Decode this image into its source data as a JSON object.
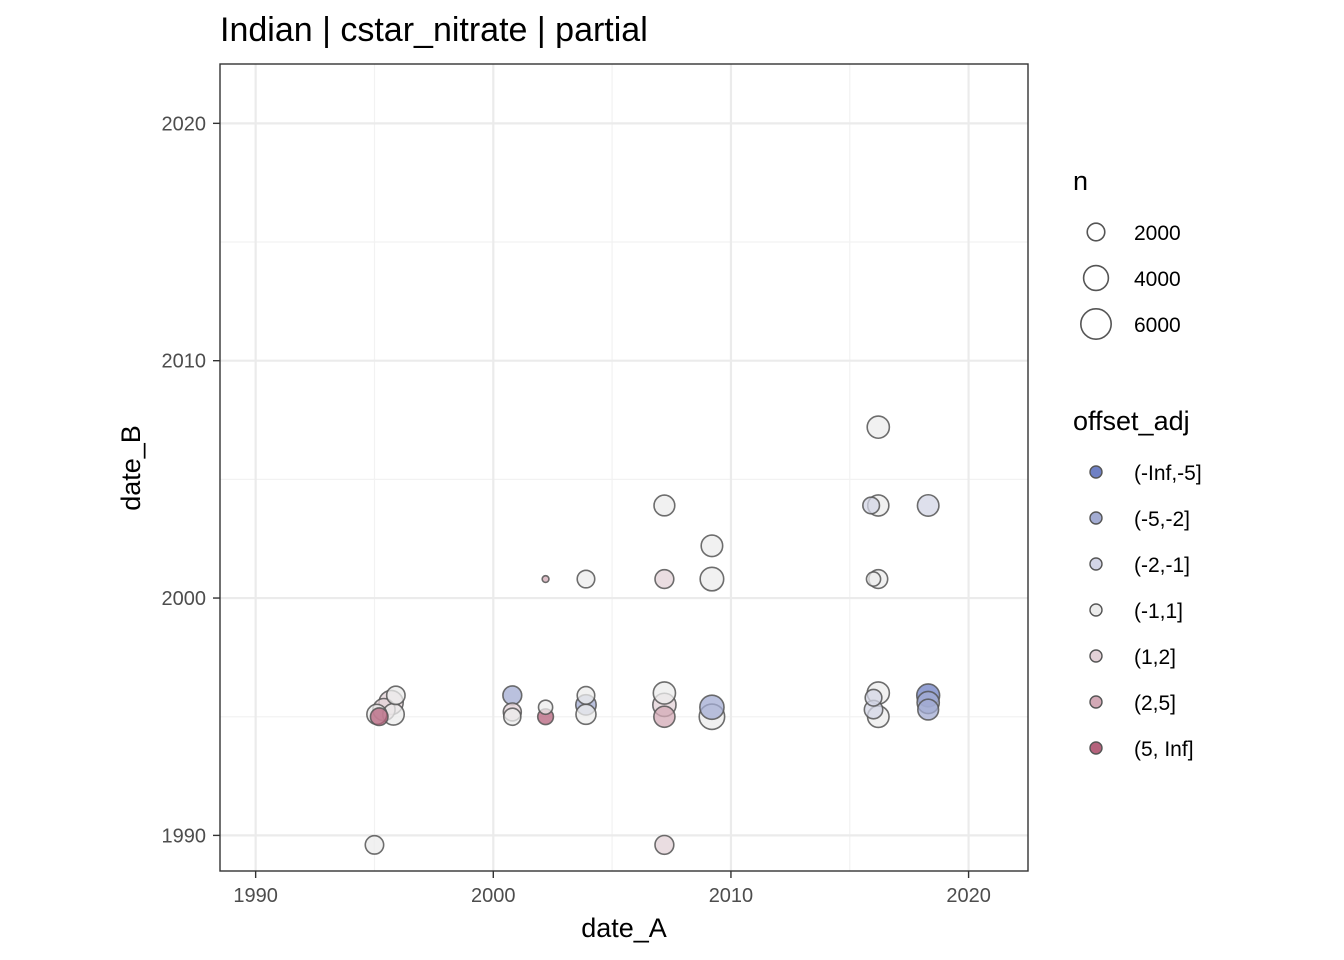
{
  "chart_data": {
    "type": "scatter",
    "title": "Indian | cstar_nitrate | partial",
    "xlabel": "date_A",
    "ylabel": "date_B",
    "xlim": [
      1988.5,
      2022.5
    ],
    "ylim": [
      1988.5,
      2022.5
    ],
    "x_ticks": [
      "1990",
      "2000",
      "2010",
      "2020"
    ],
    "y_ticks": [
      "1990",
      "2000",
      "2010",
      "2020"
    ],
    "grid": true,
    "legend_position": "right",
    "size_legend": {
      "title": "n",
      "entries": [
        {
          "label": "2000",
          "value": 2000
        },
        {
          "label": "4000",
          "value": 4000
        },
        {
          "label": "6000",
          "value": 6000
        }
      ]
    },
    "color_legend": {
      "title": "offset_adj",
      "entries": [
        {
          "label": "(-Inf,-5]",
          "color": "#6f80c4"
        },
        {
          "label": "(-5,-2]",
          "color": "#a3acd3"
        },
        {
          "label": "(-2,-1]",
          "color": "#d3d5e6"
        },
        {
          "label": "(-1,1]",
          "color": "#ececec"
        },
        {
          "label": "(1,2]",
          "color": "#e3d1d7"
        },
        {
          "label": "(2,5]",
          "color": "#d3a9b6"
        },
        {
          "label": "(5, Inf]",
          "color": "#b5627c"
        }
      ]
    },
    "points": [
      {
        "x": 1995.0,
        "y": 1989.6,
        "n": 2200,
        "group": "(-1,1]"
      },
      {
        "x": 1995.1,
        "y": 1995.1,
        "n": 2600,
        "group": "(-1,1]"
      },
      {
        "x": 1995.2,
        "y": 1995.0,
        "n": 2000,
        "group": "(5, Inf]"
      },
      {
        "x": 1995.4,
        "y": 1995.3,
        "n": 3200,
        "group": "(1,2]"
      },
      {
        "x": 1995.7,
        "y": 1995.6,
        "n": 3800,
        "group": "(1,2]"
      },
      {
        "x": 1995.8,
        "y": 1995.1,
        "n": 3000,
        "group": "(-1,1]"
      },
      {
        "x": 1995.9,
        "y": 1995.9,
        "n": 2200,
        "group": "(-1,1]"
      },
      {
        "x": 2000.8,
        "y": 1995.9,
        "n": 2300,
        "group": "(-5,-2]"
      },
      {
        "x": 2000.8,
        "y": 1995.2,
        "n": 2100,
        "group": "(1,2]"
      },
      {
        "x": 2000.8,
        "y": 1995.0,
        "n": 1900,
        "group": "(-1,1]"
      },
      {
        "x": 2002.2,
        "y": 1995.4,
        "n": 1300,
        "group": "(-1,1]"
      },
      {
        "x": 2002.2,
        "y": 1995.0,
        "n": 1600,
        "group": "(5, Inf]"
      },
      {
        "x": 2002.2,
        "y": 2000.8,
        "n": 300,
        "group": "(2,5]"
      },
      {
        "x": 2003.9,
        "y": 2000.8,
        "n": 2000,
        "group": "(-1,1]"
      },
      {
        "x": 2003.9,
        "y": 1995.9,
        "n": 2000,
        "group": "(-1,1]"
      },
      {
        "x": 2003.9,
        "y": 1995.5,
        "n": 2700,
        "group": "(-5,-2]"
      },
      {
        "x": 2003.9,
        "y": 1995.1,
        "n": 2600,
        "group": "(-1,1]"
      },
      {
        "x": 2007.2,
        "y": 2003.9,
        "n": 2800,
        "group": "(-1,1]"
      },
      {
        "x": 2007.2,
        "y": 2000.8,
        "n": 2300,
        "group": "(1,2]"
      },
      {
        "x": 2007.2,
        "y": 1996.0,
        "n": 3200,
        "group": "(-1,1]"
      },
      {
        "x": 2007.2,
        "y": 1995.5,
        "n": 3500,
        "group": "(1,2]"
      },
      {
        "x": 2007.2,
        "y": 1995.0,
        "n": 2900,
        "group": "(2,5]"
      },
      {
        "x": 2007.2,
        "y": 1989.6,
        "n": 2300,
        "group": "(1,2]"
      },
      {
        "x": 2009.2,
        "y": 2002.2,
        "n": 3000,
        "group": "(-1,1]"
      },
      {
        "x": 2009.2,
        "y": 2000.8,
        "n": 3600,
        "group": "(-1,1]"
      },
      {
        "x": 2009.2,
        "y": 1995.0,
        "n": 4200,
        "group": "(-1,1]"
      },
      {
        "x": 2009.2,
        "y": 1995.4,
        "n": 3800,
        "group": "(-5,-2]"
      },
      {
        "x": 2016.2,
        "y": 2007.2,
        "n": 3200,
        "group": "(-1,1]"
      },
      {
        "x": 2016.2,
        "y": 2003.9,
        "n": 2900,
        "group": "(-1,1]"
      },
      {
        "x": 2015.9,
        "y": 2003.9,
        "n": 1800,
        "group": "(-2,-1]"
      },
      {
        "x": 2016.2,
        "y": 2000.8,
        "n": 2300,
        "group": "(-1,1]"
      },
      {
        "x": 2016.0,
        "y": 2000.8,
        "n": 1300,
        "group": "(-1,1]"
      },
      {
        "x": 2016.2,
        "y": 1996.0,
        "n": 3200,
        "group": "(-1,1]"
      },
      {
        "x": 2016.0,
        "y": 1995.8,
        "n": 1800,
        "group": "(-2,-1]"
      },
      {
        "x": 2016.2,
        "y": 1995.0,
        "n": 3000,
        "group": "(-1,1]"
      },
      {
        "x": 2016.0,
        "y": 1995.3,
        "n": 2200,
        "group": "(-2,-1]"
      },
      {
        "x": 2018.3,
        "y": 2003.9,
        "n": 3000,
        "group": "(-2,-1]"
      },
      {
        "x": 2018.3,
        "y": 1995.3,
        "n": 2800,
        "group": "(-5,-2]"
      },
      {
        "x": 2018.3,
        "y": 1995.6,
        "n": 3200,
        "group": "(-5,-2]"
      },
      {
        "x": 2018.3,
        "y": 1995.9,
        "n": 3400,
        "group": "(-Inf,-5]"
      }
    ]
  }
}
